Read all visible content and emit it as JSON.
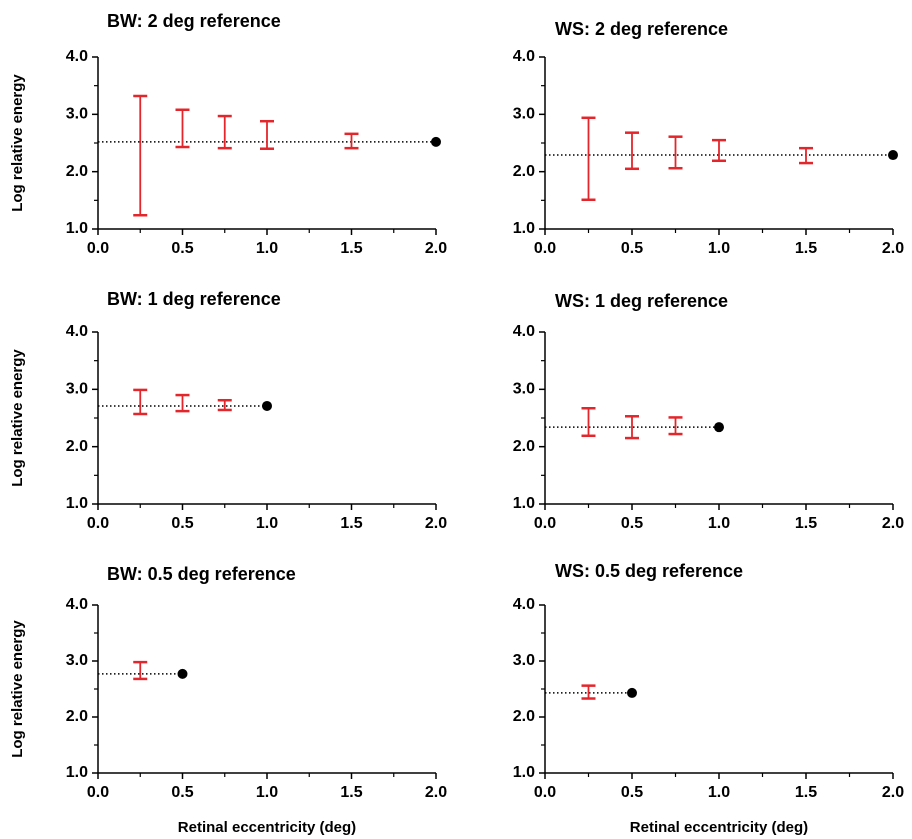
{
  "chart_data": [
    {
      "type": "errorbar",
      "title": "BW: 2 deg reference",
      "ylabel": "Log relative energy",
      "xlim": [
        0,
        2
      ],
      "ylim": [
        1,
        4
      ],
      "xticks": [
        {
          "value": 0,
          "label": "0.0"
        },
        {
          "value": 0.5,
          "label": "0.5"
        },
        {
          "value": 1,
          "label": "1.0"
        },
        {
          "value": 1.5,
          "label": "1.5"
        },
        {
          "value": 2,
          "label": "2.0"
        }
      ],
      "yticks": [
        {
          "value": 1,
          "label": "1.0"
        },
        {
          "value": 2,
          "label": "2.0"
        },
        {
          "value": 3,
          "label": "3.0"
        },
        {
          "value": 4,
          "label": "4.0"
        }
      ],
      "xminorticks": [
        0.25,
        0.75,
        1.25,
        1.75
      ],
      "yminorticks": [
        1.5,
        2.5,
        3.5
      ],
      "x": [
        0.25,
        0.5,
        0.75,
        1.0,
        1.5
      ],
      "lower": [
        1.24,
        2.43,
        2.41,
        2.4,
        2.41
      ],
      "upper": [
        3.32,
        3.08,
        2.97,
        2.88,
        2.66
      ],
      "color": "#e3262b",
      "reference": {
        "x": 2.0,
        "y": 2.52
      }
    },
    {
      "type": "errorbar",
      "title": "WS: 2 deg reference",
      "xlim": [
        0,
        2
      ],
      "ylim": [
        1,
        4
      ],
      "xticks": [
        {
          "value": 0,
          "label": "0.0"
        },
        {
          "value": 0.5,
          "label": "0.5"
        },
        {
          "value": 1,
          "label": "1.0"
        },
        {
          "value": 1.5,
          "label": "1.5"
        },
        {
          "value": 2,
          "label": "2.0"
        }
      ],
      "yticks": [
        {
          "value": 1,
          "label": "1.0"
        },
        {
          "value": 2,
          "label": "2.0"
        },
        {
          "value": 3,
          "label": "3.0"
        },
        {
          "value": 4,
          "label": "4.0"
        }
      ],
      "xminorticks": [
        0.25,
        0.75,
        1.25,
        1.75
      ],
      "yminorticks": [
        1.5,
        2.5,
        3.5
      ],
      "x": [
        0.25,
        0.5,
        0.75,
        1.0,
        1.5
      ],
      "lower": [
        1.51,
        2.05,
        2.06,
        2.19,
        2.15
      ],
      "upper": [
        2.94,
        2.68,
        2.61,
        2.55,
        2.41
      ],
      "color": "#e3262b",
      "reference": {
        "x": 2.0,
        "y": 2.29
      }
    },
    {
      "type": "errorbar",
      "title": "BW: 1 deg reference",
      "ylabel": "Log relative energy",
      "xlim": [
        0,
        2
      ],
      "ylim": [
        1,
        4
      ],
      "xticks": [
        {
          "value": 0,
          "label": "0.0"
        },
        {
          "value": 0.5,
          "label": "0.5"
        },
        {
          "value": 1,
          "label": "1.0"
        },
        {
          "value": 1.5,
          "label": "1.5"
        },
        {
          "value": 2,
          "label": "2.0"
        }
      ],
      "yticks": [
        {
          "value": 1,
          "label": "1.0"
        },
        {
          "value": 2,
          "label": "2.0"
        },
        {
          "value": 3,
          "label": "3.0"
        },
        {
          "value": 4,
          "label": "4.0"
        }
      ],
      "xminorticks": [
        0.25,
        0.75,
        1.25,
        1.75
      ],
      "yminorticks": [
        1.5,
        2.5,
        3.5
      ],
      "x": [
        0.25,
        0.5,
        0.75
      ],
      "lower": [
        2.57,
        2.62,
        2.64
      ],
      "upper": [
        2.99,
        2.9,
        2.81
      ],
      "color": "#e3262b",
      "reference": {
        "x": 1.0,
        "y": 2.71
      }
    },
    {
      "type": "errorbar",
      "title": "WS: 1 deg reference",
      "xlim": [
        0,
        2
      ],
      "ylim": [
        1,
        4
      ],
      "xticks": [
        {
          "value": 0,
          "label": "0.0"
        },
        {
          "value": 0.5,
          "label": "0.5"
        },
        {
          "value": 1,
          "label": "1.0"
        },
        {
          "value": 1.5,
          "label": "1.5"
        },
        {
          "value": 2,
          "label": "2.0"
        }
      ],
      "yticks": [
        {
          "value": 1,
          "label": "1.0"
        },
        {
          "value": 2,
          "label": "2.0"
        },
        {
          "value": 3,
          "label": "3.0"
        },
        {
          "value": 4,
          "label": "4.0"
        }
      ],
      "xminorticks": [
        0.25,
        0.75,
        1.25,
        1.75
      ],
      "yminorticks": [
        1.5,
        2.5,
        3.5
      ],
      "x": [
        0.25,
        0.5,
        0.75
      ],
      "lower": [
        2.19,
        2.15,
        2.22
      ],
      "upper": [
        2.67,
        2.53,
        2.51
      ],
      "color": "#e3262b",
      "reference": {
        "x": 1.0,
        "y": 2.34
      }
    },
    {
      "type": "errorbar",
      "title": "BW: 0.5 deg reference",
      "ylabel": "Log relative energy",
      "xlabel": "Retinal eccentricity (deg)",
      "xlim": [
        0,
        2
      ],
      "ylim": [
        1,
        4
      ],
      "xticks": [
        {
          "value": 0,
          "label": "0.0"
        },
        {
          "value": 0.5,
          "label": "0.5"
        },
        {
          "value": 1,
          "label": "1.0"
        },
        {
          "value": 1.5,
          "label": "1.5"
        },
        {
          "value": 2,
          "label": "2.0"
        }
      ],
      "yticks": [
        {
          "value": 1,
          "label": "1.0"
        },
        {
          "value": 2,
          "label": "2.0"
        },
        {
          "value": 3,
          "label": "3.0"
        },
        {
          "value": 4,
          "label": "4.0"
        }
      ],
      "xminorticks": [
        0.25,
        0.75,
        1.25,
        1.75
      ],
      "yminorticks": [
        1.5,
        2.5,
        3.5
      ],
      "x": [
        0.25
      ],
      "lower": [
        2.68
      ],
      "upper": [
        2.98
      ],
      "color": "#e3262b",
      "reference": {
        "x": 0.5,
        "y": 2.77
      }
    },
    {
      "type": "errorbar",
      "title": "WS: 0.5 deg reference",
      "xlabel": "Retinal eccentricity (deg)",
      "xlim": [
        0,
        2
      ],
      "ylim": [
        1,
        4
      ],
      "xticks": [
        {
          "value": 0,
          "label": "0.0"
        },
        {
          "value": 0.5,
          "label": "0.5"
        },
        {
          "value": 1,
          "label": "1.0"
        },
        {
          "value": 1.5,
          "label": "1.5"
        },
        {
          "value": 2,
          "label": "2.0"
        }
      ],
      "yticks": [
        {
          "value": 1,
          "label": "1.0"
        },
        {
          "value": 2,
          "label": "2.0"
        },
        {
          "value": 3,
          "label": "3.0"
        },
        {
          "value": 4,
          "label": "4.0"
        }
      ],
      "xminorticks": [
        0.25,
        0.75,
        1.25,
        1.75
      ],
      "yminorticks": [
        1.5,
        2.5,
        3.5
      ],
      "x": [
        0.25
      ],
      "lower": [
        2.33
      ],
      "upper": [
        2.56
      ],
      "color": "#e3262b",
      "reference": {
        "x": 0.5,
        "y": 2.43
      }
    }
  ]
}
